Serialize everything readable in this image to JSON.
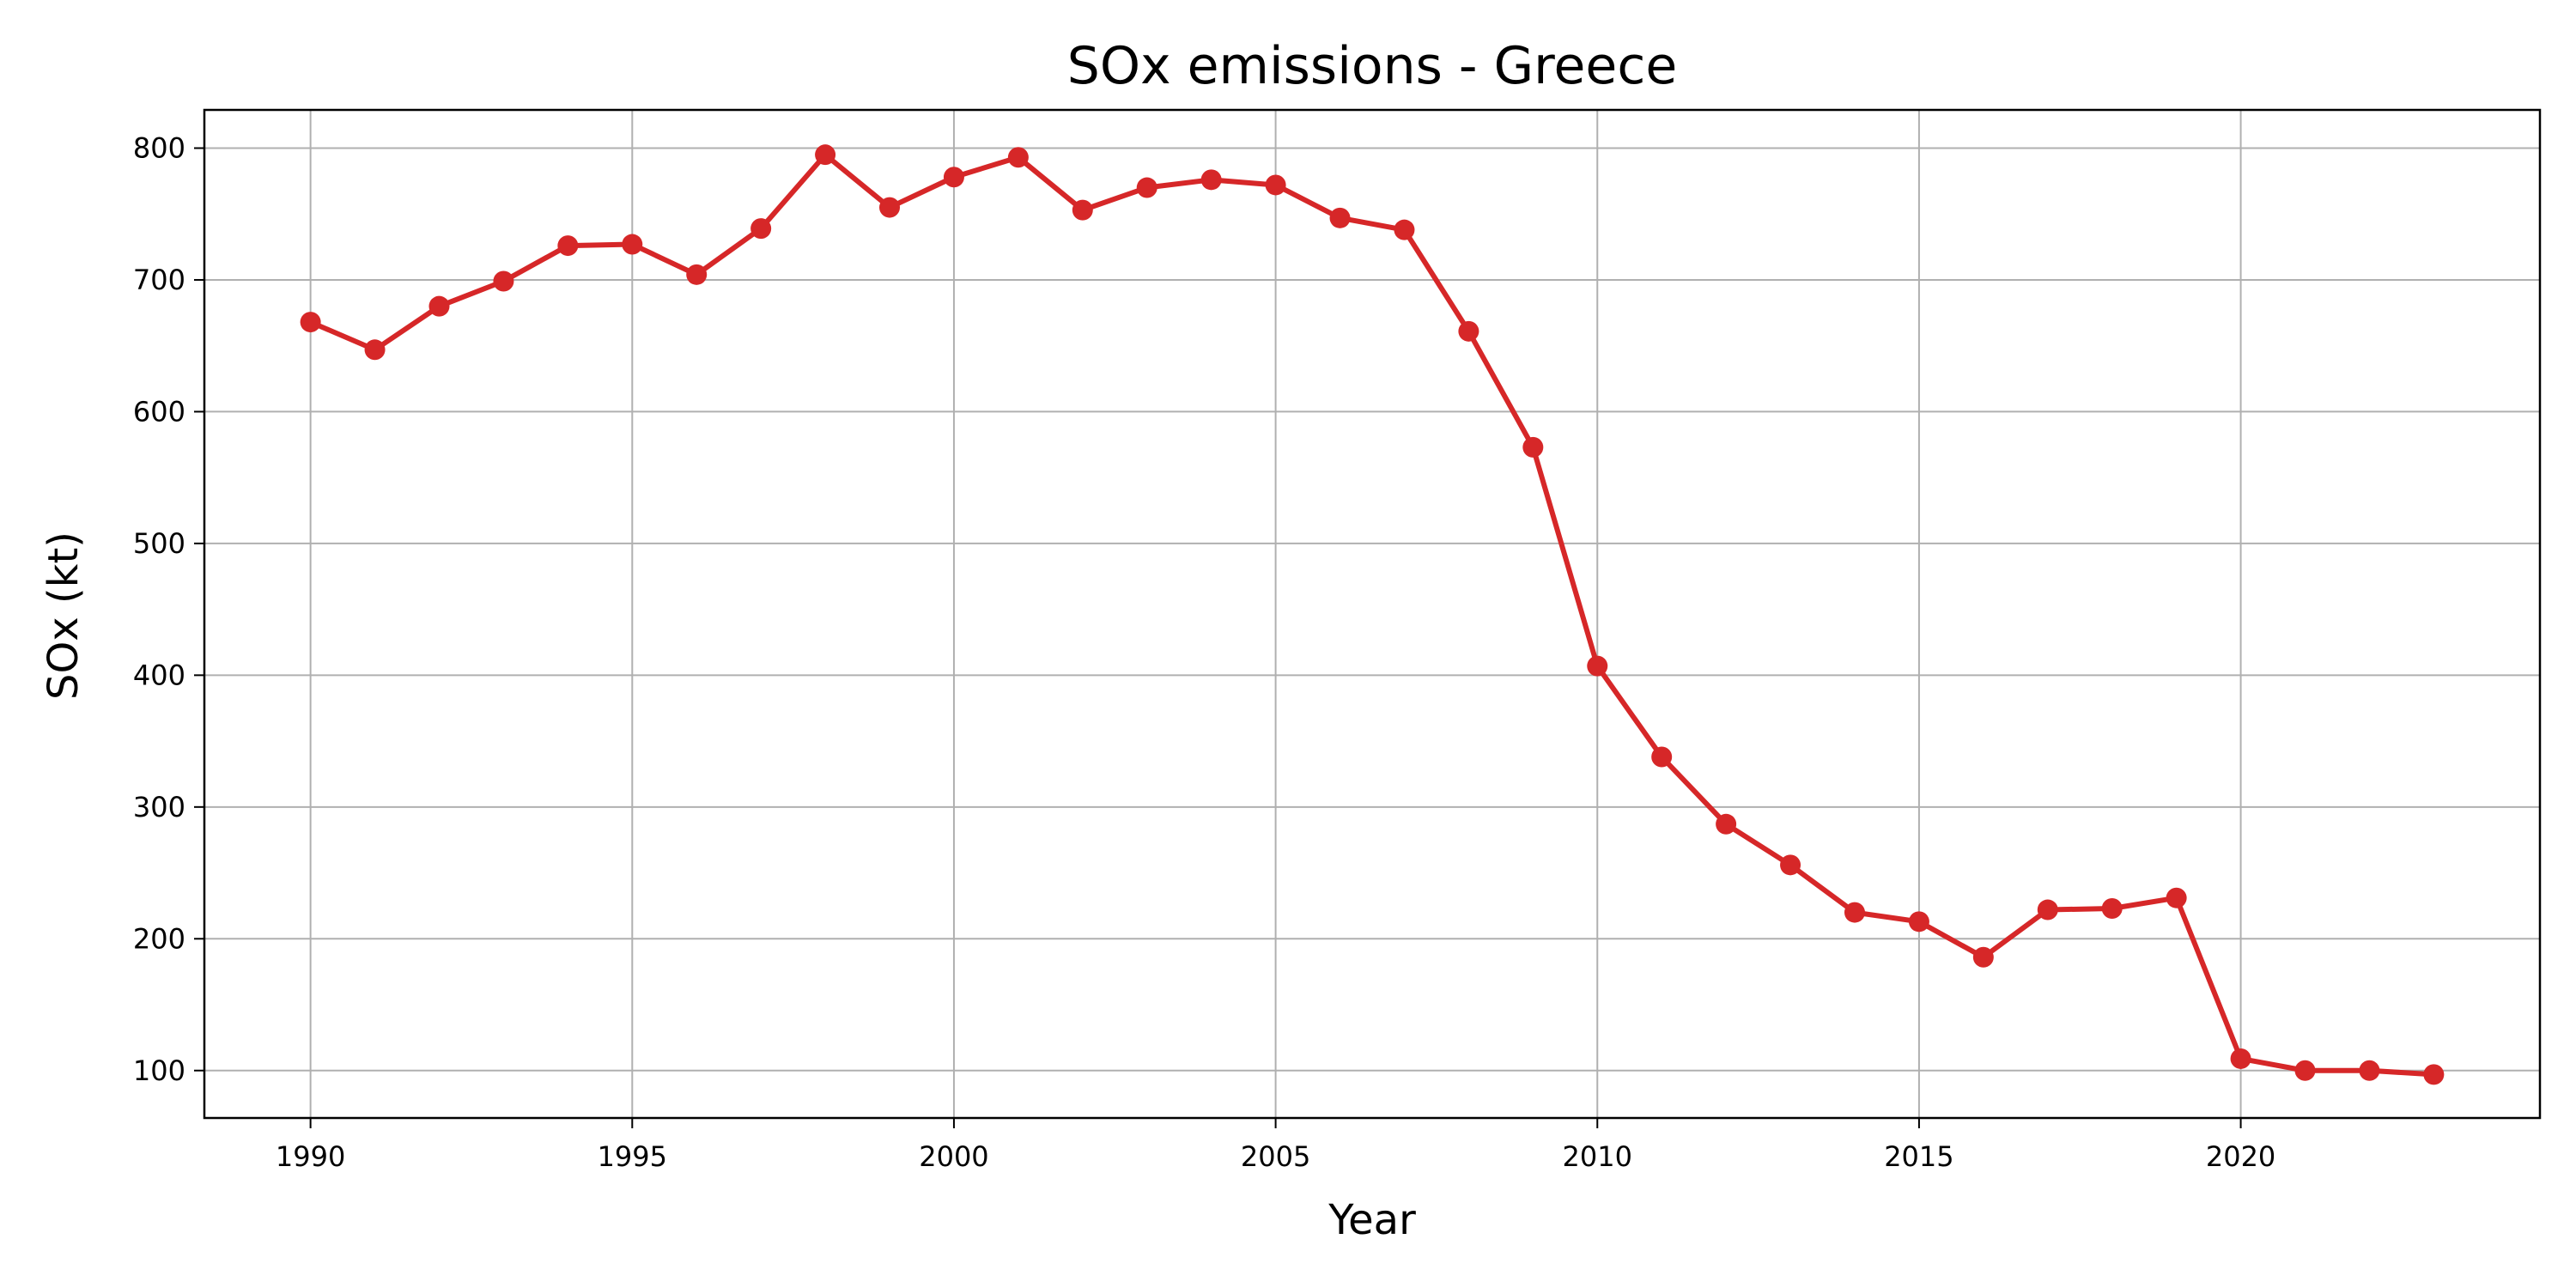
{
  "chart_data": {
    "type": "line",
    "title": "SOx emissions - Greece",
    "xlabel": "Year",
    "ylabel": "SOx (kt)",
    "x_ticks": [
      1990,
      1995,
      2000,
      2005,
      2010,
      2015,
      2020
    ],
    "y_ticks": [
      100,
      200,
      300,
      400,
      500,
      600,
      700,
      800
    ],
    "xlim": [
      1988.35,
      2024.65
    ],
    "ylim": [
      64,
      829
    ],
    "grid": true,
    "line_color": "#d62728",
    "marker": "circle",
    "x": [
      1990,
      1991,
      1992,
      1993,
      1994,
      1995,
      1996,
      1997,
      1998,
      1999,
      2000,
      2001,
      2002,
      2003,
      2004,
      2005,
      2006,
      2007,
      2008,
      2009,
      2010,
      2011,
      2012,
      2013,
      2014,
      2015,
      2016,
      2017,
      2018,
      2019,
      2020,
      2021,
      2022,
      2023
    ],
    "values": [
      668,
      647,
      680,
      699,
      726,
      727,
      704,
      739,
      795,
      755,
      778,
      793,
      753,
      770,
      776,
      772,
      747,
      738,
      661,
      573,
      407,
      338,
      287,
      256,
      220,
      213,
      186,
      222,
      223,
      231,
      109,
      100,
      100,
      97
    ]
  }
}
